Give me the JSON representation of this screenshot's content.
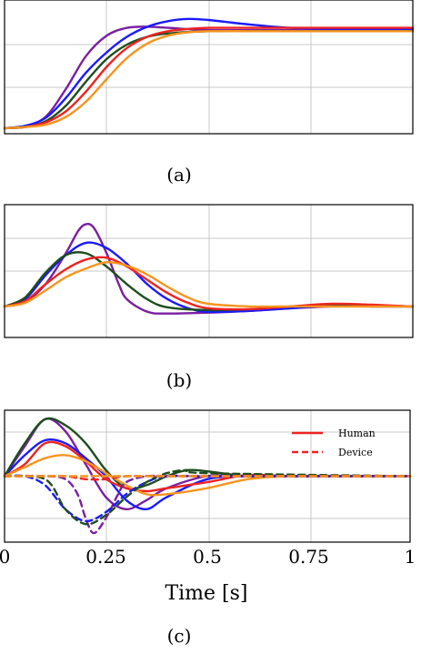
{
  "colors": {
    "purple": "#7a1fa2",
    "blue": "#1a1aff",
    "green": "#1e4d1e",
    "red": "#ee2222",
    "orange": "#f7941d",
    "grid": "#c8c8c8",
    "axis": "#000000"
  },
  "chart_data": [
    {
      "type": "line",
      "caption": "(a)",
      "xlim": [
        0,
        1
      ],
      "ylim": [
        -0.05,
        1.15
      ],
      "grid": true,
      "series": [
        {
          "color": "purple",
          "x": [
            0,
            0.05,
            0.1,
            0.15,
            0.2,
            0.25,
            0.3,
            0.35,
            0.4,
            0.5,
            0.6,
            0.7,
            0.8,
            0.9,
            1.0
          ],
          "y": [
            0,
            0.02,
            0.1,
            0.35,
            0.65,
            0.83,
            0.9,
            0.91,
            0.9,
            0.88,
            0.88,
            0.88,
            0.88,
            0.88,
            0.88
          ]
        },
        {
          "color": "blue",
          "x": [
            0,
            0.05,
            0.1,
            0.15,
            0.2,
            0.25,
            0.3,
            0.35,
            0.4,
            0.45,
            0.5,
            0.6,
            0.7,
            0.8,
            0.9,
            1.0
          ],
          "y": [
            0,
            0.02,
            0.09,
            0.27,
            0.5,
            0.68,
            0.82,
            0.91,
            0.96,
            0.98,
            0.97,
            0.93,
            0.9,
            0.89,
            0.89,
            0.89
          ]
        },
        {
          "color": "green",
          "x": [
            0,
            0.05,
            0.1,
            0.15,
            0.2,
            0.25,
            0.3,
            0.35,
            0.4,
            0.5,
            0.6,
            0.7,
            0.8,
            0.9,
            1.0
          ],
          "y": [
            0,
            0.01,
            0.06,
            0.2,
            0.42,
            0.62,
            0.75,
            0.82,
            0.85,
            0.87,
            0.87,
            0.87,
            0.87,
            0.87,
            0.87
          ]
        },
        {
          "color": "red",
          "x": [
            0,
            0.05,
            0.1,
            0.15,
            0.2,
            0.25,
            0.3,
            0.35,
            0.4,
            0.45,
            0.5,
            0.6,
            0.7,
            0.8,
            0.9,
            1.0
          ],
          "y": [
            0,
            0.01,
            0.05,
            0.15,
            0.33,
            0.55,
            0.72,
            0.82,
            0.87,
            0.89,
            0.9,
            0.9,
            0.9,
            0.9,
            0.9,
            0.9
          ]
        },
        {
          "color": "orange",
          "x": [
            0,
            0.05,
            0.1,
            0.15,
            0.2,
            0.25,
            0.3,
            0.35,
            0.4,
            0.45,
            0.5,
            0.6,
            0.7,
            0.8,
            0.9,
            1.0
          ],
          "y": [
            0,
            0.01,
            0.03,
            0.1,
            0.24,
            0.44,
            0.63,
            0.76,
            0.83,
            0.86,
            0.87,
            0.87,
            0.87,
            0.87,
            0.87,
            0.87
          ]
        }
      ]
    },
    {
      "type": "line",
      "caption": "(b)",
      "xlim": [
        0,
        1
      ],
      "ylim": [
        -0.35,
        1.15
      ],
      "grid": true,
      "series": [
        {
          "color": "purple",
          "x": [
            0,
            0.05,
            0.1,
            0.15,
            0.18,
            0.2,
            0.22,
            0.25,
            0.28,
            0.3,
            0.35,
            0.4,
            0.5,
            0.6,
            0.7,
            0.8,
            0.9,
            1.0
          ],
          "y": [
            0,
            0.05,
            0.25,
            0.6,
            0.85,
            0.93,
            0.88,
            0.6,
            0.25,
            0.08,
            -0.06,
            -0.08,
            -0.07,
            -0.05,
            -0.02,
            0.0,
            0.0,
            0.0
          ]
        },
        {
          "color": "blue",
          "x": [
            0,
            0.05,
            0.1,
            0.15,
            0.2,
            0.25,
            0.3,
            0.35,
            0.4,
            0.45,
            0.5,
            0.6,
            0.7,
            0.8,
            0.9,
            1.0
          ],
          "y": [
            0,
            0.08,
            0.35,
            0.58,
            0.72,
            0.66,
            0.48,
            0.25,
            0.08,
            -0.02,
            -0.06,
            -0.05,
            -0.02,
            0.01,
            0.01,
            0.0
          ]
        },
        {
          "color": "green",
          "x": [
            0,
            0.05,
            0.1,
            0.15,
            0.2,
            0.25,
            0.3,
            0.35,
            0.4,
            0.5,
            0.6,
            0.7,
            0.8,
            0.9,
            1.0
          ],
          "y": [
            0,
            0.1,
            0.38,
            0.58,
            0.6,
            0.45,
            0.25,
            0.08,
            -0.01,
            -0.04,
            -0.03,
            0.0,
            0.01,
            0.0,
            0.0
          ]
        },
        {
          "color": "red",
          "x": [
            0,
            0.05,
            0.1,
            0.15,
            0.2,
            0.25,
            0.3,
            0.35,
            0.4,
            0.45,
            0.5,
            0.6,
            0.7,
            0.8,
            0.9,
            1.0
          ],
          "y": [
            0,
            0.06,
            0.25,
            0.42,
            0.53,
            0.55,
            0.45,
            0.3,
            0.15,
            0.04,
            -0.02,
            -0.03,
            0.0,
            0.03,
            0.02,
            0.0
          ]
        },
        {
          "color": "orange",
          "x": [
            0,
            0.05,
            0.1,
            0.15,
            0.2,
            0.25,
            0.3,
            0.35,
            0.4,
            0.45,
            0.5,
            0.6,
            0.7,
            0.8,
            0.9,
            1.0
          ],
          "y": [
            0,
            0.04,
            0.18,
            0.33,
            0.43,
            0.5,
            0.46,
            0.36,
            0.22,
            0.1,
            0.03,
            0.0,
            0.0,
            0.0,
            0.0,
            0.0
          ]
        }
      ]
    },
    {
      "type": "line",
      "caption": "(c)",
      "xlabel": "Time [s]",
      "xlim": [
        0,
        1
      ],
      "xticks": [
        0,
        0.25,
        0.5,
        0.75,
        1
      ],
      "xtick_labels": [
        "0",
        "0.25",
        "0.5",
        "0.75",
        "1"
      ],
      "ylim": [
        -1.1,
        1.1
      ],
      "grid": true,
      "legend": {
        "position": "top-right",
        "entries": [
          {
            "label": "Human",
            "style": "solid",
            "color": "red"
          },
          {
            "label": "Device",
            "style": "dashed",
            "color": "red"
          }
        ]
      },
      "series": [
        {
          "color": "purple",
          "style": "solid",
          "x": [
            0,
            0.05,
            0.1,
            0.15,
            0.2,
            0.25,
            0.3,
            0.35,
            0.4,
            0.5,
            0.6,
            0.7,
            0.8,
            1.0
          ],
          "y": [
            0,
            0.5,
            0.95,
            0.75,
            0.2,
            -0.35,
            -0.55,
            -0.4,
            -0.2,
            0.0,
            0.0,
            0.0,
            0.0,
            0.0
          ]
        },
        {
          "color": "blue",
          "style": "solid",
          "x": [
            0,
            0.05,
            0.1,
            0.15,
            0.2,
            0.25,
            0.3,
            0.35,
            0.4,
            0.5,
            0.6,
            0.7,
            0.8,
            1.0
          ],
          "y": [
            0,
            0.35,
            0.6,
            0.55,
            0.3,
            0.0,
            -0.4,
            -0.55,
            -0.35,
            -0.05,
            0.0,
            0.0,
            0.0,
            0.0
          ]
        },
        {
          "color": "green",
          "style": "solid",
          "x": [
            0,
            0.05,
            0.1,
            0.15,
            0.2,
            0.25,
            0.3,
            0.35,
            0.4,
            0.45,
            0.5,
            0.6,
            0.7,
            0.8,
            1.0
          ],
          "y": [
            0,
            0.55,
            0.95,
            0.85,
            0.55,
            0.1,
            -0.2,
            -0.15,
            0.0,
            0.1,
            0.08,
            0.0,
            0.0,
            0.0,
            0.0
          ]
        },
        {
          "color": "red",
          "style": "solid",
          "x": [
            0,
            0.05,
            0.1,
            0.15,
            0.2,
            0.25,
            0.3,
            0.35,
            0.4,
            0.5,
            0.6,
            0.7,
            0.8,
            1.0
          ],
          "y": [
            0,
            0.2,
            0.55,
            0.5,
            0.25,
            -0.05,
            -0.2,
            -0.25,
            -0.2,
            -0.1,
            0.02,
            0.0,
            0.0,
            0.0
          ]
        },
        {
          "color": "orange",
          "style": "solid",
          "x": [
            0,
            0.05,
            0.1,
            0.15,
            0.2,
            0.25,
            0.3,
            0.35,
            0.4,
            0.5,
            0.6,
            0.7,
            0.8,
            1.0
          ],
          "y": [
            0,
            0.15,
            0.3,
            0.35,
            0.25,
            0.05,
            -0.15,
            -0.3,
            -0.3,
            -0.2,
            -0.05,
            0.0,
            0.0,
            0.0
          ]
        },
        {
          "color": "purple",
          "style": "dashed",
          "x": [
            0,
            0.1,
            0.15,
            0.18,
            0.2,
            0.22,
            0.25,
            0.28,
            0.3,
            0.35,
            0.4,
            0.5,
            1.0
          ],
          "y": [
            0,
            0.0,
            -0.05,
            -0.3,
            -0.7,
            -0.95,
            -0.7,
            -0.3,
            -0.1,
            0.0,
            0.0,
            0.0,
            0.0
          ]
        },
        {
          "color": "blue",
          "style": "dashed",
          "x": [
            0,
            0.05,
            0.1,
            0.15,
            0.2,
            0.25,
            0.3,
            0.35,
            0.4,
            0.5,
            1.0
          ],
          "y": [
            0,
            0.0,
            -0.15,
            -0.55,
            -0.75,
            -0.6,
            -0.3,
            -0.1,
            0.0,
            0.0,
            0.0
          ]
        },
        {
          "color": "green",
          "style": "dashed",
          "x": [
            0,
            0.1,
            0.15,
            0.2,
            0.25,
            0.3,
            0.35,
            0.4,
            0.45,
            0.5,
            1.0
          ],
          "y": [
            0,
            -0.05,
            -0.55,
            -0.8,
            -0.65,
            -0.35,
            -0.1,
            0.05,
            0.1,
            0.05,
            0.0
          ]
        },
        {
          "color": "red",
          "style": "dashed",
          "x": [
            0,
            0.1,
            0.15,
            0.2,
            0.25,
            0.3,
            0.4,
            1.0
          ],
          "y": [
            0,
            0.0,
            0.0,
            -0.05,
            -0.05,
            0.0,
            0.0,
            0.0
          ]
        },
        {
          "color": "orange",
          "style": "dashed",
          "x": [
            0,
            0.1,
            0.2,
            0.3,
            0.4,
            0.5,
            1.0
          ],
          "y": [
            0,
            0.0,
            0.0,
            0.0,
            0.0,
            0.0,
            0.0
          ]
        }
      ]
    }
  ]
}
